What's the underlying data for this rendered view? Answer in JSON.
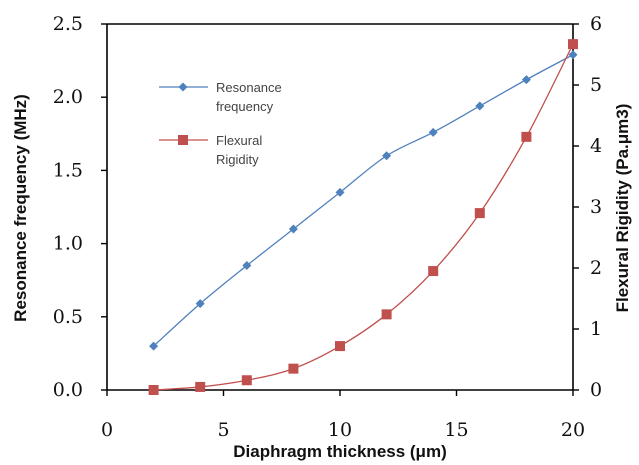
{
  "chart_data": {
    "type": "line",
    "x": [
      2,
      4,
      6,
      8,
      10,
      12,
      14,
      16,
      18,
      20
    ],
    "xlabel": "Diaphragm thickness  (μm)",
    "xlim": [
      0,
      20
    ],
    "xticks": [
      "0",
      "5",
      "10",
      "15",
      "20"
    ],
    "ylabel": "Resonance frequency (MHz)",
    "ylim": [
      0,
      2.5
    ],
    "yticks": [
      "0.0",
      "0.5",
      "1.0",
      "1.5",
      "2.0",
      "2.5"
    ],
    "y2label": "Flexural Rigidity (Pa.μm3)",
    "y2lim": [
      0,
      6
    ],
    "y2ticks": [
      "0",
      "1",
      "2",
      "3",
      "4",
      "5",
      "6"
    ],
    "grid": false,
    "legend_position": "top-left",
    "series": [
      {
        "name_lines": [
          "Resonance",
          "frequency"
        ],
        "axis": "left",
        "marker": "diamond",
        "color": "#4f81bd",
        "values": [
          0.3,
          0.59,
          0.85,
          1.1,
          1.35,
          1.6,
          1.76,
          1.94,
          2.12,
          2.29
        ]
      },
      {
        "name_lines": [
          "Flexural",
          "Rigidity"
        ],
        "axis": "right",
        "marker": "square",
        "color": "#c0504d",
        "values": [
          0,
          0.05,
          0.16,
          0.35,
          0.72,
          1.24,
          1.95,
          2.9,
          4.15,
          5.67
        ]
      }
    ]
  }
}
